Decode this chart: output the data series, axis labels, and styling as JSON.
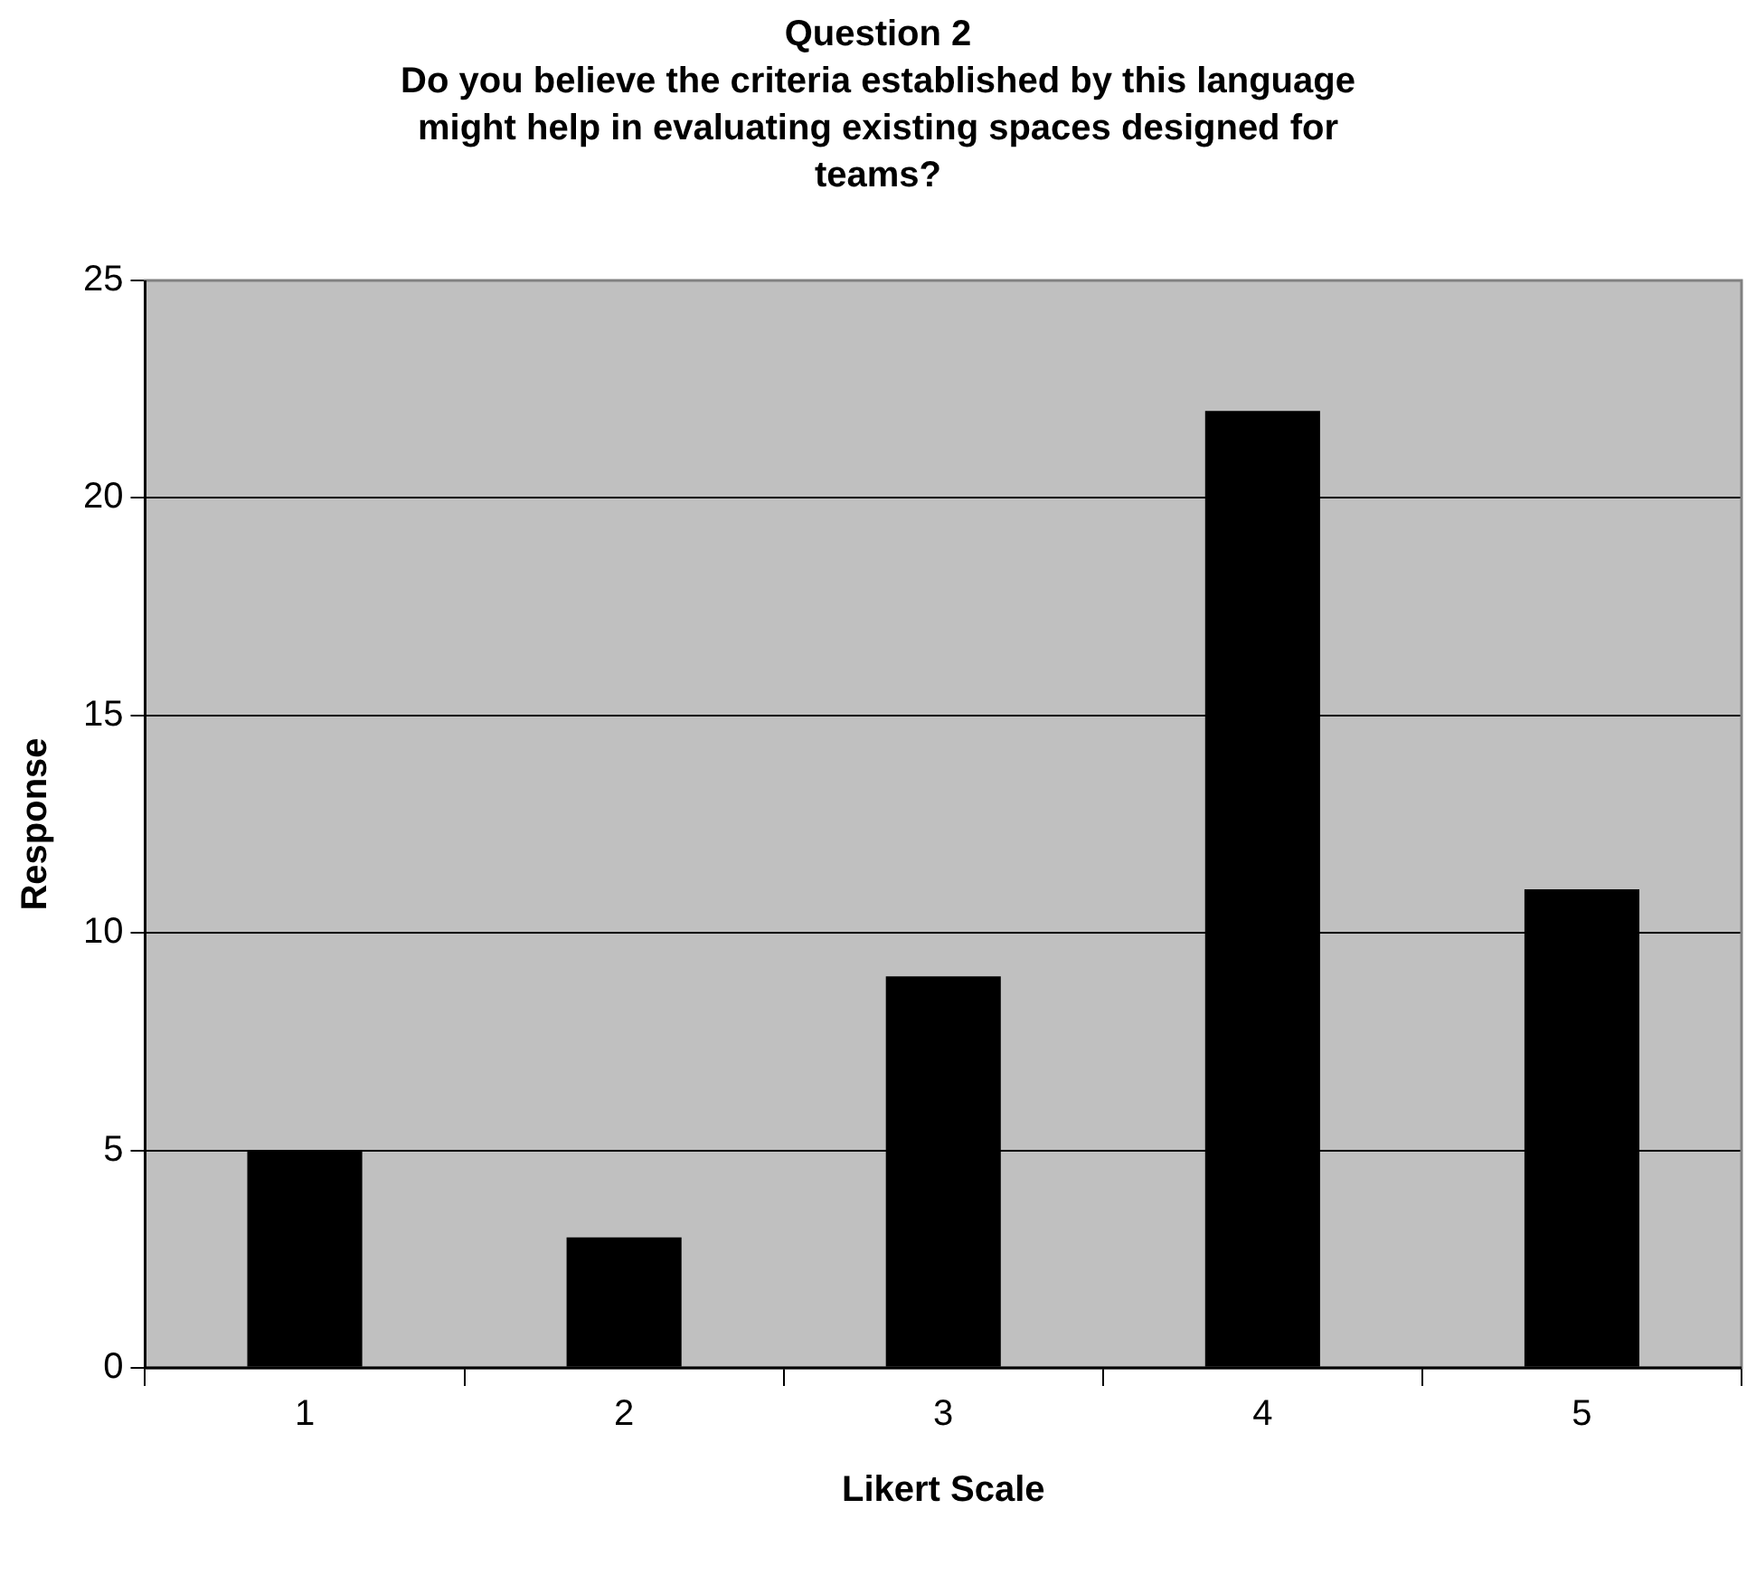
{
  "chart_data": {
    "type": "bar",
    "title": "Question 2",
    "subtitle": "Do you believe the criteria established by this language might help in evaluating existing spaces designed for teams?",
    "xlabel": "Likert Scale",
    "ylabel": "Response",
    "categories": [
      "1",
      "2",
      "3",
      "4",
      "5"
    ],
    "values": [
      5,
      3,
      9,
      22,
      11
    ],
    "color": "#000000",
    "ylim": [
      0,
      25
    ],
    "yticks": [
      0,
      5,
      10,
      15,
      20,
      25
    ],
    "grid": "y",
    "legend": false
  }
}
